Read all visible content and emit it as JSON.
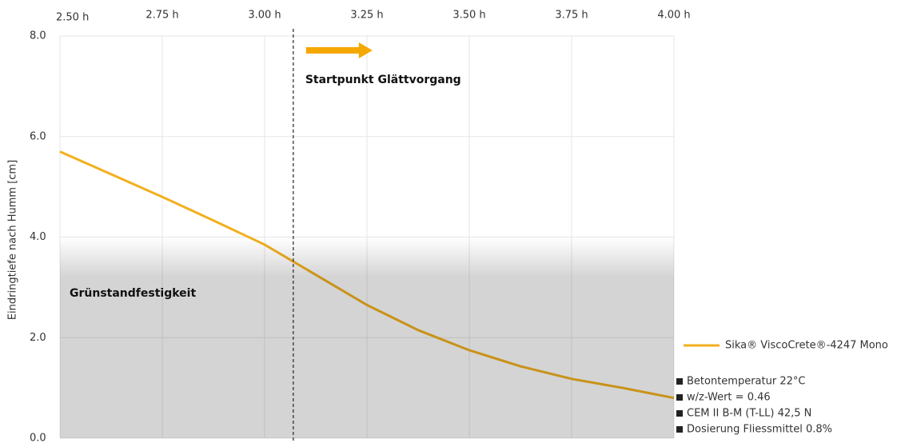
{
  "chart_data": {
    "type": "line",
    "y_label": "Eindringtiefe nach Humm [cm]",
    "x": [
      2.5,
      2.625,
      2.75,
      2.875,
      3.0,
      3.125,
      3.25,
      3.375,
      3.5,
      3.625,
      3.75,
      3.875,
      4.0
    ],
    "series": [
      {
        "name": "Sika® ViscoCrete®-4247 Mono",
        "color": "#f2b01e",
        "values": [
          5.7,
          5.25,
          4.8,
          4.33,
          3.85,
          3.25,
          2.65,
          2.15,
          1.75,
          1.43,
          1.18,
          1.0,
          0.8
        ]
      }
    ],
    "xlim": [
      2.5,
      4.0
    ],
    "xticks": [
      {
        "value": 2.5,
        "label": "2.50 h"
      },
      {
        "value": 2.75,
        "label": "2.75 h"
      },
      {
        "value": 3.0,
        "label": "3.00 h"
      },
      {
        "value": 3.25,
        "label": "3.25 h"
      },
      {
        "value": 3.5,
        "label": "3.50 h"
      },
      {
        "value": 3.75,
        "label": "3.75 h"
      },
      {
        "value": 4.0,
        "label": "4.00 h"
      }
    ],
    "ylim": [
      0,
      8
    ],
    "yticks": [
      {
        "value": 0,
        "label": "0.0"
      },
      {
        "value": 2,
        "label": "2.0"
      },
      {
        "value": 4,
        "label": "4.0"
      },
      {
        "value": 6,
        "label": "6.0"
      },
      {
        "value": 8,
        "label": "8.0"
      }
    ],
    "grid": true,
    "band": {
      "label": "Grünstandfestigkeit",
      "y_range": [
        0,
        4
      ]
    },
    "marker_line": {
      "label": "Startpunkt Glättvorgang",
      "x": 3.07
    },
    "notes": [
      "Betontemperatur 22°C",
      "w/z-Wert = 0.46",
      "CEM II B-M (T-LL) 42,5 N",
      "Dosierung Fliessmittel 0.8%"
    ]
  }
}
